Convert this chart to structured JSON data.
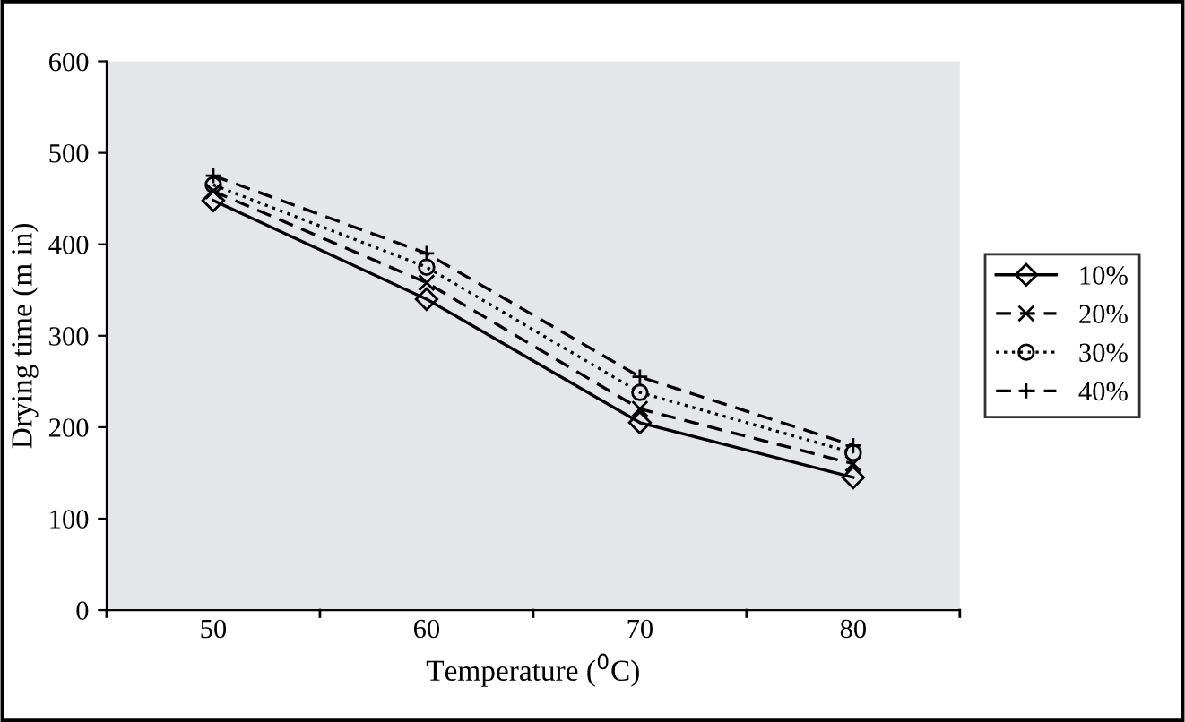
{
  "chart_data": {
    "type": "line",
    "xlabel": "Temperature ($^{0}$C)",
    "ylabel": "Drying time (m in)",
    "categories": [
      "50",
      "60",
      "70",
      "80"
    ],
    "series": [
      {
        "name": "10%",
        "color": "#000000",
        "values": [
          448,
          340,
          205,
          145
        ],
        "marker": "diamond",
        "line_style": "solid"
      },
      {
        "name": "20%",
        "color": "#000000",
        "values": [
          458,
          358,
          220,
          160
        ],
        "marker": "cross",
        "line_style": "dashed"
      },
      {
        "name": "30%",
        "color": "#000000",
        "values": [
          465,
          375,
          238,
          172
        ],
        "marker": "circle",
        "line_style": "dotted"
      },
      {
        "name": "40%",
        "color": "#000000",
        "values": [
          475,
          390,
          255,
          180
        ],
        "marker": "plus",
        "line_style": "dashed"
      }
    ],
    "ylim": [
      0,
      600
    ],
    "yticks": [
      0,
      100,
      200,
      300,
      400,
      500,
      600
    ],
    "grid": false,
    "legend": "right"
  }
}
